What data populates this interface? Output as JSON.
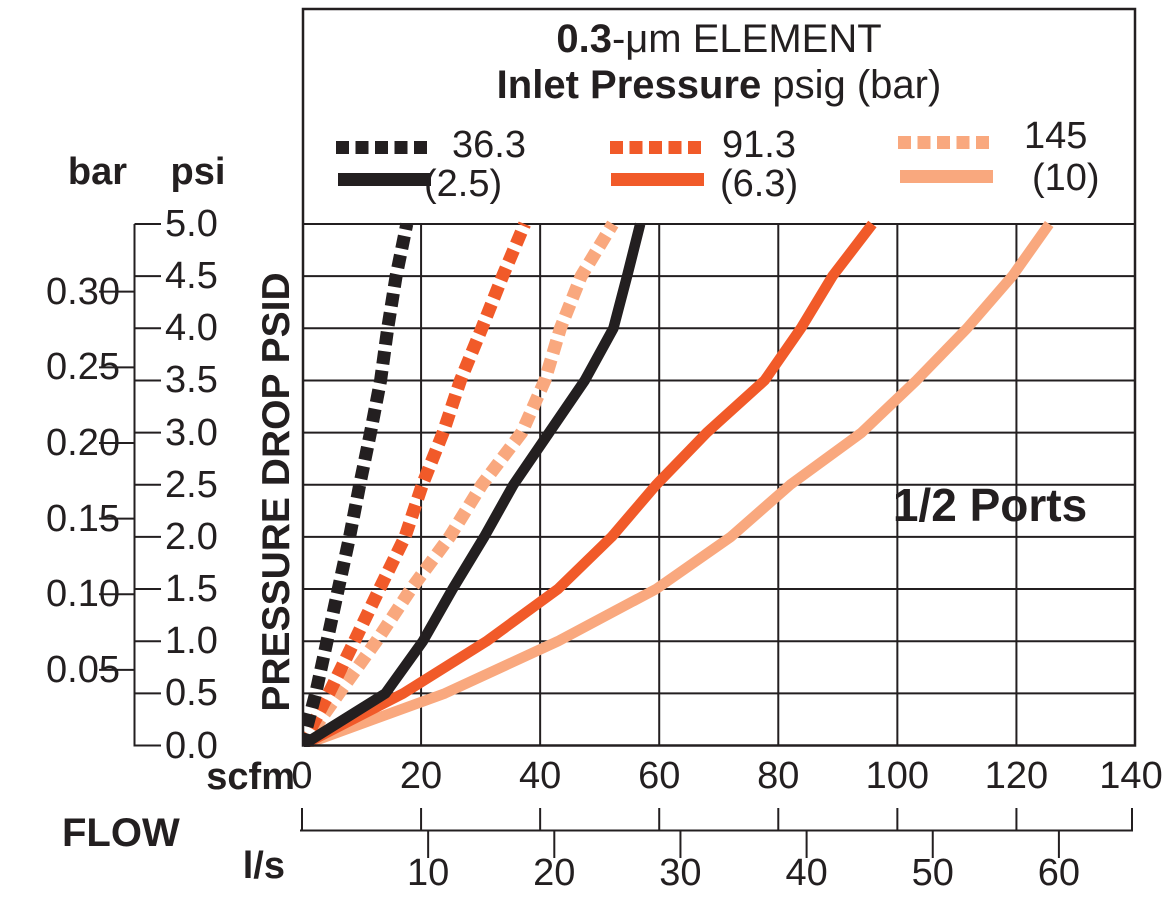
{
  "title": {
    "line1_bold": "0.3",
    "line1_rest": "-μm ELEMENT",
    "line2_bold": "Inlet Pressure",
    "line2_rest": " psig (bar)"
  },
  "annotation": "1/2 Ports",
  "legend": {
    "entries": [
      {
        "dash_label": "36.3",
        "solid_label": "(2.5)",
        "color": "#231F20"
      },
      {
        "dash_label": "91.3",
        "solid_label": "(6.3)",
        "color": "#F15A29"
      },
      {
        "dash_label": "145",
        "solid_label": "(10)",
        "color": "#F9A87E"
      }
    ]
  },
  "y_axis": {
    "unit_left": "bar",
    "unit_right": "psi",
    "label": "PRESSURE DROP PSID",
    "psi_ticks": [
      "5.0",
      "4.5",
      "4.0",
      "3.5",
      "3.0",
      "2.5",
      "2.0",
      "1.5",
      "1.0",
      "0.5",
      "0.0"
    ],
    "bar_ticks": [
      "0.30",
      "0.25",
      "0.20",
      "0.15",
      "0.10",
      "0.05"
    ]
  },
  "x_axis": {
    "label": "FLOW",
    "unit_top": "scfm",
    "unit_bottom": "l/s",
    "scfm_ticks": [
      "0",
      "20",
      "40",
      "60",
      "80",
      "100",
      "120",
      "140"
    ],
    "ls_ticks": [
      "10",
      "20",
      "30",
      "40",
      "50",
      "60"
    ]
  },
  "colors": {
    "black": "#231F20",
    "orange": "#F15A29",
    "light_orange": "#F9A87E",
    "grid": "#231F20",
    "background": "#ffffff"
  },
  "chart_data": {
    "type": "line",
    "title": "0.3-μm ELEMENT  Inlet Pressure psig (bar)",
    "xlabel": "FLOW (scfm / l/s)",
    "ylabel": "PRESSURE DROP PSID",
    "xlim_scfm": [
      0,
      140
    ],
    "ylim_psid": [
      0,
      5
    ],
    "x_gridline_step_scfm": 20,
    "y_gridline_step_psid": 0.5,
    "bar_scale_ticks": [
      0.05,
      0.1,
      0.15,
      0.2,
      0.25,
      0.3
    ],
    "ls_scale_ticks": [
      10,
      20,
      30,
      40,
      50,
      60
    ],
    "scfm_per_ls": 2.1189,
    "psi_per_bar": 14.5038,
    "grid": true,
    "legend_position": "top",
    "series": [
      {
        "psig": "145",
        "bar": "(10)",
        "style": "dashed",
        "color": "#F9A87E",
        "points": [
          [
            0,
            0
          ],
          [
            6.2,
            0.5
          ],
          [
            12.5,
            1.0
          ],
          [
            18.3,
            1.5
          ],
          [
            24.8,
            2.0
          ],
          [
            30.2,
            2.5
          ],
          [
            36.9,
            3.0
          ],
          [
            40.8,
            3.5
          ],
          [
            43.4,
            4.0
          ],
          [
            46.9,
            4.5
          ],
          [
            52.2,
            5.0
          ]
        ]
      },
      {
        "psig": "145",
        "bar": "(10)",
        "style": "solid",
        "color": "#F9A87E",
        "points": [
          [
            0,
            0
          ],
          [
            24.0,
            0.5
          ],
          [
            43.0,
            1.0
          ],
          [
            59.5,
            1.5
          ],
          [
            72.0,
            2.0
          ],
          [
            82.0,
            2.5
          ],
          [
            94.0,
            3.0
          ],
          [
            103.2,
            3.5
          ],
          [
            111.7,
            4.0
          ],
          [
            119.3,
            4.5
          ],
          [
            125.5,
            5.0
          ]
        ]
      },
      {
        "psig": "91.3",
        "bar": "(6.3)",
        "style": "dashed",
        "color": "#F15A29",
        "points": [
          [
            0,
            0
          ],
          [
            4.5,
            0.5
          ],
          [
            8.8,
            1.0
          ],
          [
            13.0,
            1.5
          ],
          [
            17.3,
            2.0
          ],
          [
            20.2,
            2.5
          ],
          [
            23.7,
            3.0
          ],
          [
            26.6,
            3.5
          ],
          [
            30.2,
            4.0
          ],
          [
            33.7,
            4.5
          ],
          [
            37.4,
            5.0
          ]
        ]
      },
      {
        "psig": "91.3",
        "bar": "(6.3)",
        "style": "solid",
        "color": "#F15A29",
        "points": [
          [
            0,
            0
          ],
          [
            17.0,
            0.5
          ],
          [
            31.0,
            1.0
          ],
          [
            43.0,
            1.5
          ],
          [
            52.0,
            2.0
          ],
          [
            59.5,
            2.5
          ],
          [
            68.0,
            3.0
          ],
          [
            77.7,
            3.5
          ],
          [
            83.8,
            4.0
          ],
          [
            89.1,
            4.5
          ],
          [
            95.8,
            5.0
          ]
        ]
      },
      {
        "psig": "36.3",
        "bar": "(2.5)",
        "style": "dashed",
        "color": "#231F20",
        "points": [
          [
            0,
            0
          ],
          [
            2.3,
            0.5
          ],
          [
            4.2,
            1.0
          ],
          [
            6.1,
            1.5
          ],
          [
            8.0,
            2.0
          ],
          [
            9.7,
            2.5
          ],
          [
            11.5,
            3.0
          ],
          [
            13.2,
            3.5
          ],
          [
            14.4,
            4.0
          ],
          [
            15.8,
            4.5
          ],
          [
            17.6,
            5.0
          ]
        ]
      },
      {
        "psig": "36.3",
        "bar": "(2.5)",
        "style": "solid",
        "color": "#231F20",
        "points": [
          [
            0,
            0
          ],
          [
            14.0,
            0.5
          ],
          [
            20.3,
            1.0
          ],
          [
            25.3,
            1.5
          ],
          [
            30.6,
            2.0
          ],
          [
            35.5,
            2.5
          ],
          [
            41.5,
            3.0
          ],
          [
            47.5,
            3.5
          ],
          [
            52.3,
            4.0
          ],
          [
            54.6,
            4.5
          ],
          [
            56.8,
            5.0
          ]
        ]
      }
    ]
  }
}
